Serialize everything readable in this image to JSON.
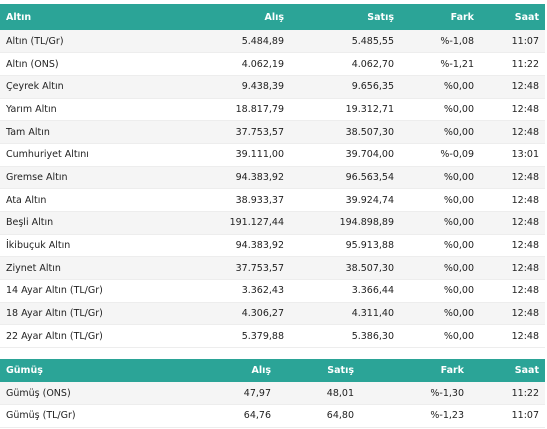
{
  "gold": {
    "headers": [
      "Altın",
      "Alış",
      "Satış",
      "Fark",
      "Saat"
    ],
    "rows": [
      [
        "Altın (TL/Gr)",
        "5.484,89",
        "5.485,55",
        "%-1,08",
        "11:07"
      ],
      [
        "Altın (ONS)",
        "4.062,19",
        "4.062,70",
        "%-1,21",
        "11:22"
      ],
      [
        "Çeyrek Altın",
        "9.438,39",
        "9.656,35",
        "%0,00",
        "12:48"
      ],
      [
        "Yarım Altın",
        "18.817,79",
        "19.312,71",
        "%0,00",
        "12:48"
      ],
      [
        "Tam Altın",
        "37.753,57",
        "38.507,30",
        "%0,00",
        "12:48"
      ],
      [
        "Cumhuriyet Altını",
        "39.111,00",
        "39.704,00",
        "%-0,09",
        "13:01"
      ],
      [
        "Gremse Altın",
        "94.383,92",
        "96.563,54",
        "%0,00",
        "12:48"
      ],
      [
        "Ata Altın",
        "38.933,37",
        "39.924,74",
        "%0,00",
        "12:48"
      ],
      [
        "Beşli Altın",
        "191.127,44",
        "194.898,89",
        "%0,00",
        "12:48"
      ],
      [
        "İkibuçuk Altın",
        "94.383,92",
        "95.913,88",
        "%0,00",
        "12:48"
      ],
      [
        "Ziynet Altın",
        "37.753,57",
        "38.507,30",
        "%0,00",
        "12:48"
      ],
      [
        "14 Ayar Altın (TL/Gr)",
        "3.362,43",
        "3.366,44",
        "%0,00",
        "12:48"
      ],
      [
        "18 Ayar Altın (TL/Gr)",
        "4.306,27",
        "4.311,40",
        "%0,00",
        "12:48"
      ],
      [
        "22 Ayar Altın (TL/Gr)",
        "5.379,88",
        "5.386,30",
        "%0,00",
        "12:48"
      ]
    ]
  },
  "silver": {
    "headers": [
      "Gümüş",
      "Alış",
      "Satış",
      "Fark",
      "Saat"
    ],
    "rows": [
      [
        "Gümüş (ONS)",
        "47,97",
        "48,01",
        "%-1,30",
        "11:22"
      ],
      [
        "Gümüş (TL/Gr)",
        "64,76",
        "64,80",
        "%-1,23",
        "11:07"
      ]
    ]
  },
  "colors": {
    "header_bg": "#2ba497",
    "header_text": "#ffffff",
    "row_odd": "#f5f5f5",
    "row_even": "#ffffff"
  }
}
